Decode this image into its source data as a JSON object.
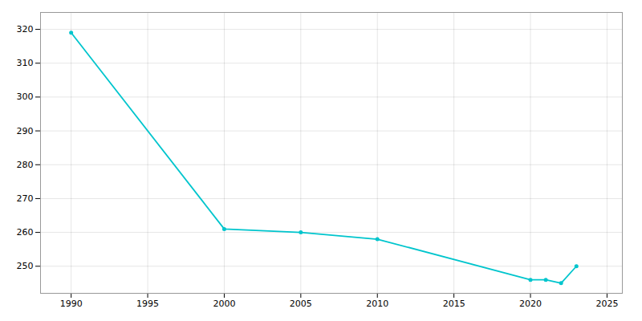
{
  "chart_data": {
    "type": "line",
    "x": [
      1990,
      2000,
      2005,
      2010,
      2020,
      2021,
      2022,
      2023
    ],
    "values": [
      319,
      261,
      260,
      258,
      246,
      246,
      245,
      250
    ],
    "color": "#00C5CD",
    "marker": "circle",
    "xlim": [
      1988,
      2026
    ],
    "ylim": [
      242,
      325
    ],
    "xticks": [
      1990,
      1995,
      2000,
      2005,
      2010,
      2015,
      2020,
      2025
    ],
    "yticks": [
      250,
      260,
      270,
      280,
      290,
      300,
      310,
      320
    ],
    "grid": true
  }
}
